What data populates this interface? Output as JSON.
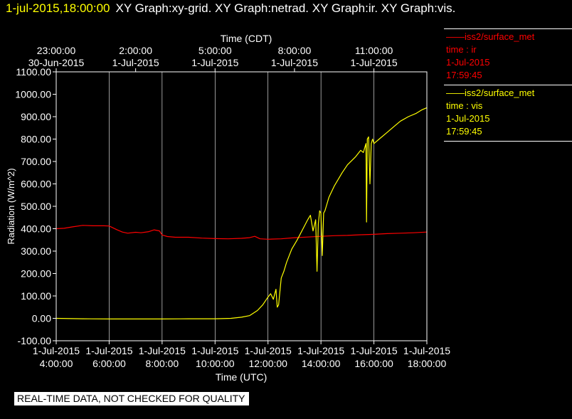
{
  "header": {
    "timestamp": "1-jul-2015,18:00:00",
    "titles": "XY Graph:xy-grid.  XY Graph:netrad.  XY Graph:ir.  XY Graph:vis."
  },
  "legend": [
    {
      "line1": "——iss2/surface_met",
      "line2": "time : ir",
      "line3": "1-Jul-2015",
      "line4": "17:59:45",
      "color": "#ff0000"
    },
    {
      "line1": "——iss2/surface_met",
      "line2": "time : vis",
      "line3": "1-Jul-2015",
      "line4": "17:59:45",
      "color": "#ffff00"
    }
  ],
  "banner": "REAL-TIME DATA, NOT CHECKED FOR QUALITY",
  "colors": {
    "ir": "#ff0000",
    "vis": "#ffff00",
    "grid": "#ffffff",
    "axis": "#ffffff",
    "background": "#000000"
  },
  "chart_data": {
    "type": "line",
    "xlabel": "Time (UTC)",
    "x2label": "Time (CDT)",
    "ylabel": "Radiation (W/m^2)",
    "xlim": [
      4.0,
      18.0
    ],
    "ylim": [
      -100,
      1100
    ],
    "grid": true,
    "legend_position": "right",
    "x_ticks": [
      {
        "value": 4,
        "line1": "1-Jul-2015",
        "line2": "4:00:00"
      },
      {
        "value": 6,
        "line1": "1-Jul-2015",
        "line2": "6:00:00"
      },
      {
        "value": 8,
        "line1": "1-Jul-2015",
        "line2": "8:00:00"
      },
      {
        "value": 10,
        "line1": "1-Jul-2015",
        "line2": "10:00:00"
      },
      {
        "value": 12,
        "line1": "1-Jul-2015",
        "line2": "12:00:00"
      },
      {
        "value": 14,
        "line1": "1-Jul-2015",
        "line2": "14:00:00"
      },
      {
        "value": 16,
        "line1": "1-Jul-2015",
        "line2": "16:00:00"
      },
      {
        "value": 18,
        "line1": "1-Jul-2015",
        "line2": "18:00:00"
      }
    ],
    "x2_ticks": [
      {
        "value": 4,
        "line1": "23:00:00",
        "line2": "30-Jun-2015"
      },
      {
        "value": 7,
        "line1": "2:00:00",
        "line2": "1-Jul-2015"
      },
      {
        "value": 10,
        "line1": "5:00:00",
        "line2": "1-Jul-2015"
      },
      {
        "value": 13,
        "line1": "8:00:00",
        "line2": "1-Jul-2015"
      },
      {
        "value": 16,
        "line1": "11:00:00",
        "line2": "1-Jul-2015"
      }
    ],
    "y_ticks": [
      {
        "value": -100,
        "label": "-100.00"
      },
      {
        "value": 0,
        "label": "0.00"
      },
      {
        "value": 100,
        "label": "100.00"
      },
      {
        "value": 200,
        "label": "200.00"
      },
      {
        "value": 300,
        "label": "300.00"
      },
      {
        "value": 400,
        "label": "400.00"
      },
      {
        "value": 500,
        "label": "500.00"
      },
      {
        "value": 600,
        "label": "600.00"
      },
      {
        "value": 700,
        "label": "700.00"
      },
      {
        "value": 800,
        "label": "800.00"
      },
      {
        "value": 900,
        "label": "900.00"
      },
      {
        "value": 1000,
        "label": "1000.00"
      },
      {
        "value": 1100,
        "label": "1100.00"
      }
    ],
    "series": [
      {
        "key": "ir",
        "x": [
          4.0,
          4.3,
          4.6,
          5.0,
          5.4,
          5.8,
          6.0,
          6.3,
          6.5,
          6.7,
          7.0,
          7.2,
          7.5,
          7.7,
          7.9,
          8.0,
          8.2,
          8.5,
          9.0,
          9.5,
          10.0,
          10.5,
          11.0,
          11.3,
          11.5,
          11.7,
          12.0,
          12.5,
          13.0,
          13.5,
          14.0,
          14.5,
          15.0,
          15.5,
          16.0,
          16.5,
          17.0,
          17.5,
          18.0
        ],
        "y": [
          400,
          402,
          408,
          415,
          413,
          413,
          412,
          395,
          385,
          380,
          384,
          382,
          387,
          395,
          390,
          372,
          365,
          362,
          362,
          358,
          356,
          355,
          357,
          360,
          366,
          355,
          353,
          355,
          360,
          363,
          366,
          369,
          370,
          373,
          375,
          378,
          380,
          382,
          385
        ]
      },
      {
        "key": "vis",
        "x": [
          4.0,
          5.0,
          6.0,
          7.0,
          8.0,
          9.0,
          10.0,
          10.6,
          11.0,
          11.3,
          11.6,
          11.8,
          12.0,
          12.1,
          12.2,
          12.3,
          12.35,
          12.4,
          12.5,
          12.6,
          12.7,
          12.8,
          12.9,
          13.1,
          13.3,
          13.5,
          13.6,
          13.7,
          13.8,
          13.85,
          13.9,
          13.95,
          14.0,
          14.05,
          14.1,
          14.15,
          14.2,
          14.3,
          14.5,
          14.8,
          15.0,
          15.3,
          15.5,
          15.6,
          15.7,
          15.72,
          15.75,
          15.8,
          15.85,
          15.9,
          15.95,
          16.0,
          16.2,
          16.5,
          16.8,
          17.0,
          17.3,
          17.6,
          17.8,
          18.0
        ],
        "y": [
          0,
          -2,
          -3,
          -3,
          -3,
          -2,
          -2,
          0,
          5,
          12,
          35,
          60,
          95,
          110,
          85,
          130,
          50,
          60,
          180,
          210,
          250,
          280,
          310,
          350,
          395,
          440,
          460,
          390,
          440,
          210,
          420,
          480,
          470,
          280,
          470,
          480,
          500,
          540,
          590,
          650,
          685,
          720,
          750,
          740,
          780,
          430,
          800,
          810,
          600,
          780,
          800,
          780,
          800,
          830,
          860,
          880,
          900,
          915,
          930,
          940
        ]
      }
    ]
  }
}
